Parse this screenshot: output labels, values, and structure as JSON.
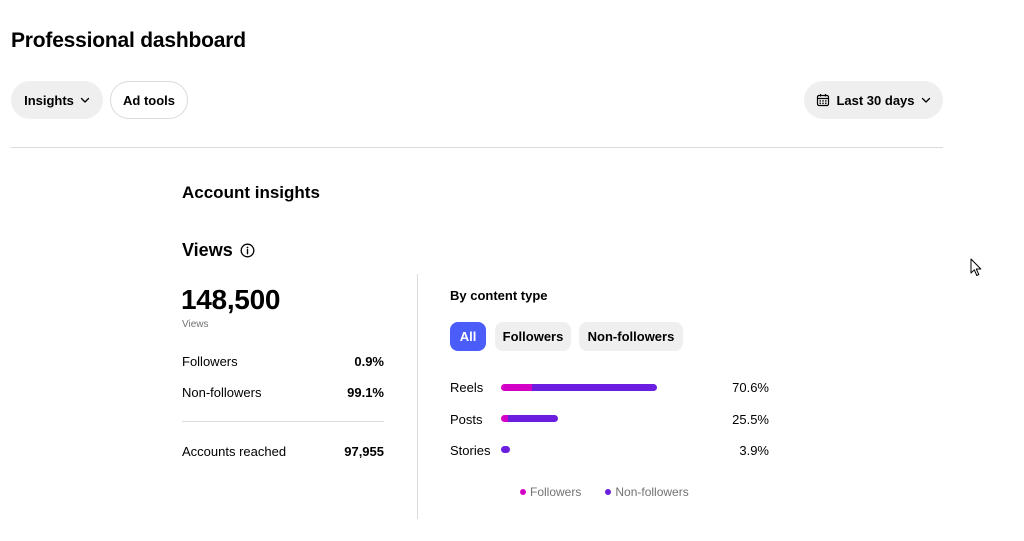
{
  "page": {
    "title": "Professional dashboard"
  },
  "toolbar": {
    "insights_label": "Insights",
    "ad_tools_label": "Ad tools",
    "date_range_label": "Last 30 days"
  },
  "account_insights": {
    "title": "Account insights",
    "views": {
      "title": "Views",
      "total": "148,500",
      "total_caption": "Views",
      "rows": [
        {
          "label": "Followers",
          "value": "0.9%"
        },
        {
          "label": "Non-followers",
          "value": "99.1%"
        }
      ],
      "accounts_reached": {
        "label": "Accounts reached",
        "value": "97,955"
      }
    },
    "by_content_type": {
      "title": "By content type",
      "filters": [
        {
          "label": "All",
          "active": true
        },
        {
          "label": "Followers",
          "active": false
        },
        {
          "label": "Non-followers",
          "active": false
        }
      ],
      "bars": [
        {
          "label": "Reels",
          "percent_label": "70.6%",
          "total_fraction": 1.0,
          "followers_fraction": 0.2
        },
        {
          "label": "Posts",
          "percent_label": "25.5%",
          "total_fraction": 0.368,
          "followers_fraction": 0.12
        },
        {
          "label": "Stories",
          "percent_label": "3.9%",
          "total_fraction": 0.058,
          "followers_fraction": 0.0
        }
      ],
      "legend": [
        {
          "label": "Followers",
          "color": "#d300c5"
        },
        {
          "label": "Non-followers",
          "color": "#6b1ee0"
        }
      ]
    }
  },
  "colors": {
    "accent": "#4a5df9",
    "followers": "#d300c5",
    "non_followers": "#6b1ee0"
  }
}
